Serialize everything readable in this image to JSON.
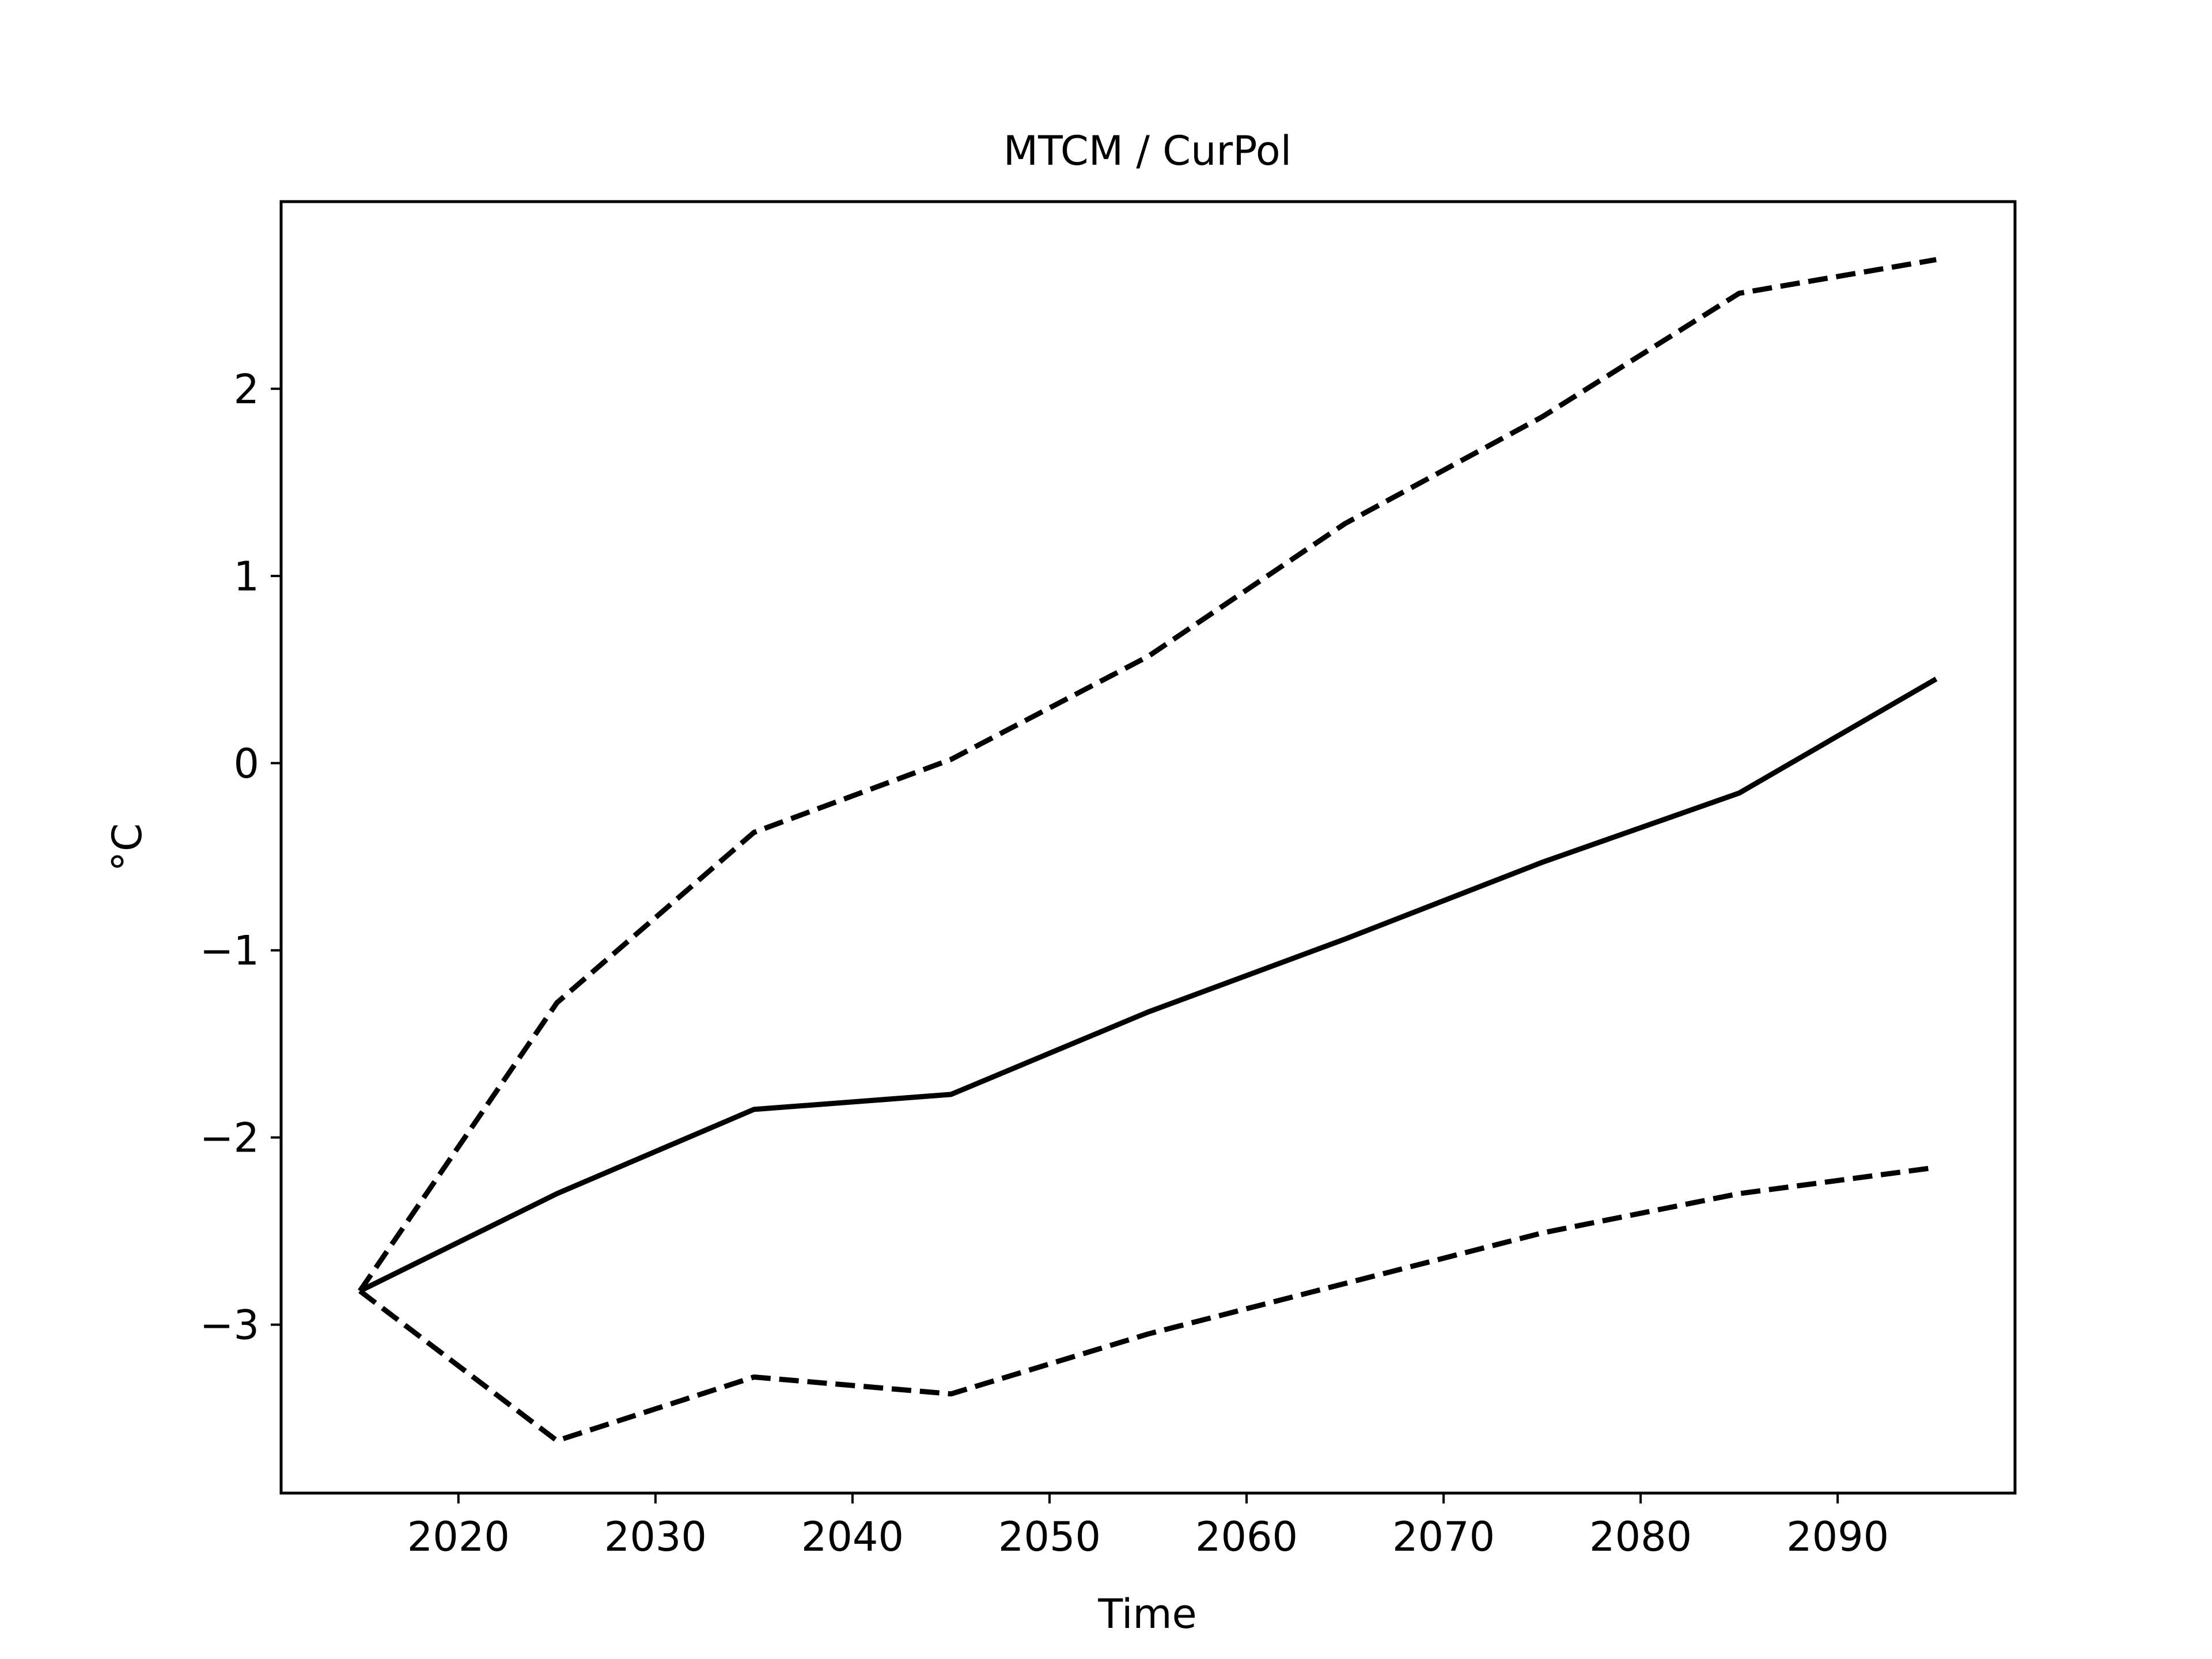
{
  "chart_data": {
    "type": "line",
    "title": "MTCM / CurPol",
    "xlabel": "Time",
    "ylabel": "°C",
    "xlim": [
      2011,
      2099
    ],
    "ylim": [
      -3.9,
      3.0
    ],
    "x_ticks": [
      2020,
      2030,
      2040,
      2050,
      2060,
      2070,
      2080,
      2090
    ],
    "y_ticks": [
      -3,
      -2,
      -1,
      0,
      1,
      2
    ],
    "x": [
      2015,
      2025,
      2035,
      2045,
      2055,
      2065,
      2075,
      2085,
      2095
    ],
    "series": [
      {
        "style": "solid",
        "color": "#000000",
        "values": [
          -2.82,
          -2.3,
          -1.85,
          -1.77,
          -1.33,
          -0.94,
          -0.53,
          -0.16,
          0.45
        ]
      },
      {
        "style": "dashed",
        "color": "#000000",
        "values": [
          -2.82,
          -1.28,
          -0.37,
          0.02,
          0.57,
          1.28,
          1.85,
          2.51,
          2.69
        ]
      },
      {
        "style": "dashed",
        "color": "#000000",
        "values": [
          -2.82,
          -3.62,
          -3.28,
          -3.37,
          -3.05,
          -2.78,
          -2.51,
          -2.3,
          -2.16
        ]
      }
    ],
    "grid": false,
    "legend": "none"
  }
}
